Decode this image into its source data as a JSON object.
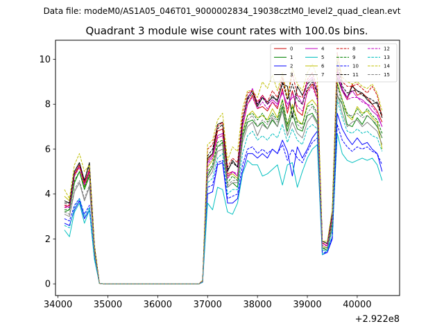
{
  "page": {
    "suptitle": "Data file: modeM0/AS1A05_046T01_9000002834_19038cztM0_level2_quad_clean.evt"
  },
  "chart_data": {
    "type": "line",
    "title": "Quadrant 3 module wise count rates with 100.0s bins.",
    "xlabel": "",
    "ylabel": "",
    "offset_text": "+2.922e8",
    "xlim": [
      33950,
      40850
    ],
    "ylim": [
      -0.52,
      10.85
    ],
    "xticks": [
      34000,
      35000,
      36000,
      37000,
      38000,
      39000,
      40000
    ],
    "xtick_labels": [
      "34000",
      "35000",
      "36000",
      "37000",
      "38000",
      "39000",
      "40000"
    ],
    "yticks": [
      0,
      2,
      4,
      6,
      8,
      10
    ],
    "ytick_labels": [
      "0",
      "2",
      "4",
      "6",
      "8",
      "10"
    ],
    "legend_position": "top-right",
    "x": [
      34130,
      34230,
      34330,
      34430,
      34530,
      34630,
      34730,
      34830,
      34930,
      35030,
      35130,
      35230,
      35330,
      35430,
      35530,
      35630,
      35730,
      35830,
      35930,
      36030,
      36130,
      36230,
      36330,
      36430,
      36530,
      36630,
      36730,
      36830,
      36900,
      37000,
      37100,
      37200,
      37300,
      37400,
      37500,
      37600,
      37700,
      37800,
      37900,
      38000,
      38100,
      38200,
      38300,
      38400,
      38500,
      38600,
      38700,
      38800,
      38900,
      39000,
      39100,
      39200,
      39300,
      39400,
      39500,
      39600,
      39700,
      39800,
      39900,
      40000,
      40100,
      40200,
      40300,
      40400,
      40500
    ],
    "series": [
      {
        "name": "0",
        "color": "#cc0000",
        "dash": "solid",
        "values": [
          3.4,
          3.5,
          4.8,
          5.3,
          4.5,
          5.1,
          1.6,
          0.02,
          0,
          0,
          0,
          0,
          0,
          0,
          0,
          0,
          0,
          0,
          0,
          0,
          0,
          0,
          0,
          0,
          0,
          0,
          0,
          0,
          0.15,
          5.5,
          5.8,
          6.8,
          6.9,
          4.9,
          5.0,
          4.8,
          7.0,
          8.0,
          8.4,
          7.8,
          7.9,
          7.7,
          8.1,
          7.8,
          8.7,
          7.6,
          8.6,
          7.7,
          7.5,
          8.6,
          8.9,
          8.3,
          1.8,
          1.7,
          3.1,
          9.6,
          8.6,
          8.2,
          8.9,
          8.4,
          8.5,
          8.3,
          8.0,
          7.7,
          7.2
        ]
      },
      {
        "name": "1",
        "color": "#008000",
        "dash": "solid",
        "values": [
          3.2,
          3.3,
          4.5,
          5.0,
          4.2,
          4.8,
          1.5,
          0.02,
          0,
          0,
          0,
          0,
          0,
          0,
          0,
          0,
          0,
          0,
          0,
          0,
          0,
          0,
          0,
          0,
          0,
          0,
          0,
          0,
          0.1,
          4.8,
          5.2,
          6.1,
          6.3,
          4.3,
          4.5,
          4.3,
          6.5,
          7.2,
          7.3,
          7.0,
          7.2,
          6.9,
          7.3,
          7.0,
          7.9,
          6.8,
          7.6,
          6.9,
          6.8,
          7.5,
          7.6,
          7.2,
          1.6,
          1.5,
          2.7,
          8.4,
          8.0,
          7.1,
          7.0,
          7.4,
          7.1,
          7.5,
          7.3,
          7.0,
          6.5
        ]
      },
      {
        "name": "2",
        "color": "#0000ff",
        "dash": "solid",
        "values": [
          2.7,
          2.6,
          3.3,
          3.7,
          2.9,
          3.3,
          1.2,
          0.02,
          0,
          0,
          0,
          0,
          0,
          0,
          0,
          0,
          0,
          0,
          0,
          0,
          0,
          0,
          0,
          0,
          0,
          0,
          0,
          0,
          0.08,
          4.0,
          4.1,
          5.3,
          5.4,
          3.6,
          3.6,
          3.8,
          5.0,
          5.8,
          5.8,
          5.6,
          5.8,
          5.6,
          6.0,
          5.8,
          6.4,
          5.9,
          4.8,
          6.1,
          5.6,
          6.0,
          6.5,
          6.8,
          1.3,
          1.4,
          2.0,
          7.6,
          6.9,
          6.5,
          6.2,
          6.5,
          6.2,
          6.3,
          6.0,
          5.8,
          5.0
        ]
      },
      {
        "name": "3",
        "color": "#000000",
        "dash": "solid",
        "values": [
          3.7,
          3.6,
          5.0,
          5.4,
          4.6,
          5.4,
          1.7,
          0.02,
          0,
          0,
          0,
          0,
          0,
          0,
          0,
          0,
          0,
          0,
          0,
          0,
          0,
          0,
          0,
          0,
          0,
          0,
          0,
          0,
          0.15,
          5.6,
          5.8,
          7.1,
          7.2,
          5.0,
          5.5,
          5.2,
          7.2,
          8.3,
          8.6,
          7.9,
          8.3,
          8.1,
          8.3,
          8.2,
          8.9,
          8.8,
          7.4,
          8.8,
          8.4,
          8.9,
          9.1,
          8.6,
          1.9,
          1.8,
          3.2,
          9.2,
          8.6,
          8.3,
          8.8,
          8.6,
          8.5,
          8.2,
          8.0,
          8.1,
          7.5
        ]
      },
      {
        "name": "4",
        "color": "#bf00bf",
        "dash": "solid",
        "values": [
          3.5,
          3.4,
          4.9,
          5.3,
          4.4,
          5.0,
          1.6,
          0.02,
          0,
          0,
          0,
          0,
          0,
          0,
          0,
          0,
          0,
          0,
          0,
          0,
          0,
          0,
          0,
          0,
          0,
          0,
          0,
          0,
          0.12,
          5.4,
          5.7,
          6.6,
          6.7,
          4.7,
          5.0,
          4.8,
          7.2,
          8.2,
          8.7,
          8.0,
          8.4,
          8.0,
          8.2,
          8.0,
          8.5,
          8.0,
          8.3,
          8.4,
          8.0,
          9.0,
          9.2,
          8.5,
          1.8,
          1.7,
          3.0,
          9.5,
          8.7,
          8.3,
          8.6,
          8.3,
          8.2,
          8.0,
          7.7,
          7.5,
          7.0
        ]
      },
      {
        "name": "5",
        "color": "#00bfbf",
        "dash": "solid",
        "values": [
          2.4,
          2.1,
          3.2,
          3.6,
          2.7,
          3.3,
          1.1,
          0.02,
          0,
          0,
          0,
          0,
          0,
          0,
          0,
          0,
          0,
          0,
          0,
          0,
          0,
          0,
          0,
          0,
          0,
          0,
          0,
          0,
          0.07,
          3.6,
          3.3,
          4.3,
          4.2,
          3.2,
          3.1,
          3.6,
          4.9,
          5.5,
          5.3,
          5.3,
          4.8,
          4.9,
          5.1,
          5.3,
          4.4,
          5.3,
          5.4,
          4.3,
          5.0,
          5.6,
          6.0,
          6.2,
          1.3,
          1.5,
          2.1,
          6.7,
          5.8,
          5.5,
          5.4,
          5.5,
          5.6,
          5.5,
          5.6,
          5.3,
          4.6
        ]
      },
      {
        "name": "6",
        "color": "#bfbf00",
        "dash": "solid",
        "values": [
          3.9,
          3.7,
          4.8,
          5.2,
          4.3,
          4.9,
          1.6,
          0.02,
          0,
          0,
          0,
          0,
          0,
          0,
          0,
          0,
          0,
          0,
          0,
          0,
          0,
          0,
          0,
          0,
          0,
          0,
          0,
          0,
          0.12,
          5.2,
          5.5,
          6.5,
          6.6,
          4.8,
          4.9,
          4.7,
          6.8,
          7.5,
          7.7,
          7.4,
          7.5,
          7.3,
          7.8,
          7.4,
          8.2,
          7.0,
          8.0,
          7.3,
          7.1,
          8.0,
          8.2,
          7.9,
          1.7,
          1.6,
          2.9,
          9.0,
          8.2,
          7.5,
          7.3,
          7.9,
          7.6,
          7.7,
          7.4,
          7.2,
          6.0
        ]
      },
      {
        "name": "7",
        "color": "#808080",
        "dash": "solid",
        "values": [
          3.1,
          3.0,
          4.1,
          4.5,
          3.7,
          4.3,
          1.4,
          0.02,
          0,
          0,
          0,
          0,
          0,
          0,
          0,
          0,
          0,
          0,
          0,
          0,
          0,
          0,
          0,
          0,
          0,
          0,
          0,
          0,
          0.1,
          4.7,
          5.0,
          5.9,
          6.0,
          4.3,
          4.5,
          4.5,
          6.3,
          7.0,
          7.2,
          6.6,
          7.1,
          6.9,
          7.4,
          7.0,
          7.7,
          6.6,
          7.2,
          6.7,
          6.5,
          7.2,
          7.5,
          7.1,
          1.5,
          1.5,
          2.5,
          8.5,
          7.6,
          7.0,
          7.2,
          7.3,
          7.0,
          7.2,
          7.0,
          6.8,
          6.2
        ]
      },
      {
        "name": "8",
        "color": "#cc0000",
        "dash": "dashed",
        "values": [
          3.5,
          3.5,
          4.9,
          5.3,
          4.5,
          5.1,
          1.6,
          0.02,
          0,
          0,
          0,
          0,
          0,
          0,
          0,
          0,
          0,
          0,
          0,
          0,
          0,
          0,
          0,
          0,
          0,
          0,
          0,
          0,
          0.15,
          6.0,
          6.2,
          7.0,
          7.2,
          5.2,
          5.6,
          5.4,
          7.5,
          8.5,
          8.6,
          8.1,
          8.4,
          8.1,
          8.6,
          8.3,
          9.2,
          8.2,
          9.4,
          8.4,
          8.3,
          9.1,
          9.4,
          8.7,
          1.8,
          1.8,
          3.1,
          10.3,
          9.0,
          8.8,
          8.8,
          8.9,
          8.7,
          8.5,
          8.8,
          8.4,
          7.4
        ]
      },
      {
        "name": "9",
        "color": "#008000",
        "dash": "dashed",
        "values": [
          3.3,
          3.3,
          4.6,
          5.0,
          4.3,
          4.9,
          1.5,
          0.02,
          0,
          0,
          0,
          0,
          0,
          0,
          0,
          0,
          0,
          0,
          0,
          0,
          0,
          0,
          0,
          0,
          0,
          0,
          0,
          0,
          0.12,
          5.0,
          5.3,
          6.3,
          6.4,
          4.5,
          4.8,
          4.6,
          6.7,
          7.5,
          7.6,
          7.3,
          7.6,
          7.2,
          7.6,
          7.3,
          8.2,
          7.1,
          7.9,
          7.2,
          7.1,
          7.9,
          8.0,
          7.6,
          1.6,
          1.6,
          2.8,
          8.9,
          8.2,
          7.6,
          7.4,
          7.8,
          7.5,
          7.8,
          7.5,
          7.3,
          6.7
        ]
      },
      {
        "name": "10",
        "color": "#0000ff",
        "dash": "dashed",
        "values": [
          2.9,
          2.8,
          3.5,
          3.8,
          3.1,
          3.5,
          1.2,
          0.02,
          0,
          0,
          0,
          0,
          0,
          0,
          0,
          0,
          0,
          0,
          0,
          0,
          0,
          0,
          0,
          0,
          0,
          0,
          0,
          0,
          0.08,
          4.3,
          4.4,
          5.4,
          5.5,
          3.8,
          3.9,
          4.0,
          5.3,
          6.0,
          6.1,
          5.8,
          6.0,
          5.8,
          6.0,
          5.8,
          6.2,
          5.5,
          6.0,
          5.6,
          5.4,
          5.9,
          6.3,
          6.5,
          1.4,
          1.4,
          2.1,
          7.1,
          6.4,
          6.1,
          5.9,
          6.1,
          6.0,
          6.1,
          5.9,
          5.8,
          5.3
        ]
      },
      {
        "name": "11",
        "color": "#000000",
        "dash": "dashed",
        "values": [
          3.6,
          3.6,
          5.0,
          5.4,
          4.6,
          5.3,
          1.7,
          0.02,
          0,
          0,
          0,
          0,
          0,
          0,
          0,
          0,
          0,
          0,
          0,
          0,
          0,
          0,
          0,
          0,
          0,
          0,
          0,
          0,
          0.15,
          5.7,
          6.0,
          6.9,
          7.1,
          5.1,
          5.4,
          5.2,
          7.3,
          8.2,
          8.5,
          8.0,
          8.3,
          8.0,
          8.4,
          8.1,
          9.0,
          8.2,
          8.9,
          8.2,
          8.0,
          8.7,
          9.0,
          8.5,
          1.9,
          1.8,
          3.2,
          9.9,
          8.8,
          8.5,
          8.6,
          8.6,
          8.4,
          8.3,
          8.2,
          8.0,
          7.4
        ]
      },
      {
        "name": "12",
        "color": "#bf00bf",
        "dash": "dashed",
        "values": [
          3.4,
          3.4,
          4.8,
          5.2,
          4.4,
          5.0,
          1.6,
          0.02,
          0,
          0,
          0,
          0,
          0,
          0,
          0,
          0,
          0,
          0,
          0,
          0,
          0,
          0,
          0,
          0,
          0,
          0,
          0,
          0,
          0.12,
          5.3,
          5.6,
          6.5,
          6.6,
          4.8,
          5.0,
          4.9,
          7.0,
          8.0,
          8.3,
          7.8,
          8.1,
          7.8,
          8.1,
          7.9,
          8.6,
          7.8,
          8.5,
          7.9,
          7.7,
          8.5,
          8.8,
          8.2,
          1.7,
          1.7,
          3.0,
          9.4,
          8.6,
          8.2,
          8.3,
          8.3,
          8.1,
          8.0,
          7.9,
          7.6,
          7.0
        ]
      },
      {
        "name": "13",
        "color": "#00bfbf",
        "dash": "dashed",
        "values": [
          2.6,
          2.5,
          3.4,
          3.8,
          3.0,
          3.4,
          1.2,
          0.02,
          0,
          0,
          0,
          0,
          0,
          0,
          0,
          0,
          0,
          0,
          0,
          0,
          0,
          0,
          0,
          0,
          0,
          0,
          0,
          0,
          0.08,
          4.5,
          4.7,
          5.6,
          5.8,
          4.0,
          4.2,
          4.2,
          5.8,
          6.6,
          6.8,
          6.4,
          6.6,
          6.4,
          6.7,
          6.5,
          7.1,
          6.3,
          6.9,
          6.4,
          6.2,
          6.9,
          7.1,
          6.9,
          1.5,
          1.5,
          2.4,
          8.2,
          7.4,
          6.8,
          6.7,
          6.9,
          6.7,
          6.8,
          6.6,
          6.5,
          5.9
        ]
      },
      {
        "name": "14",
        "color": "#bfbf00",
        "dash": "dashed",
        "values": [
          4.2,
          3.8,
          5.3,
          5.8,
          5.0,
          5.3,
          1.7,
          0.02,
          0,
          0,
          0,
          0,
          0,
          0,
          0,
          0,
          0,
          0,
          0,
          0,
          0,
          0,
          0,
          0,
          0,
          0,
          0,
          0,
          0.15,
          6.2,
          6.4,
          7.3,
          7.6,
          5.5,
          6.1,
          5.9,
          7.8,
          8.6,
          8.6,
          8.3,
          9.0,
          8.7,
          9.3,
          8.6,
          9.4,
          8.3,
          9.6,
          8.9,
          8.6,
          9.4,
          9.8,
          9.2,
          1.9,
          1.9,
          3.3,
          10.2,
          9.2,
          9.0,
          8.9,
          9.0,
          8.8,
          8.7,
          8.9,
          8.5,
          7.7
        ]
      },
      {
        "name": "15",
        "color": "#808080",
        "dash": "dashed",
        "values": [
          3.2,
          3.1,
          4.2,
          4.6,
          3.8,
          4.4,
          1.4,
          0.02,
          0,
          0,
          0,
          0,
          0,
          0,
          0,
          0,
          0,
          0,
          0,
          0,
          0,
          0,
          0,
          0,
          0,
          0,
          0,
          0,
          0.1,
          4.9,
          5.2,
          6.1,
          6.2,
          4.4,
          4.6,
          4.6,
          6.6,
          7.3,
          7.5,
          7.0,
          7.3,
          7.1,
          7.5,
          7.2,
          8.0,
          7.0,
          7.6,
          7.1,
          6.9,
          7.6,
          7.9,
          7.5,
          1.6,
          1.6,
          2.7,
          8.8,
          8.0,
          7.5,
          7.5,
          7.6,
          7.4,
          7.5,
          7.3,
          7.1,
          6.5
        ]
      }
    ]
  }
}
